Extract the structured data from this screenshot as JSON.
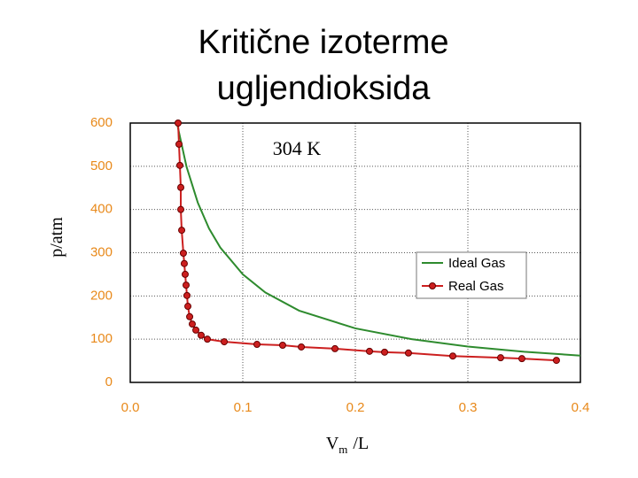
{
  "chart_data": {
    "type": "line",
    "title": [
      "Kritične izoterme",
      "ugljendioksida"
    ],
    "annotation": "304 K",
    "y_label": "p/atm",
    "x_label": {
      "main": "V",
      "sub": "m",
      "unit": "/L"
    },
    "xlim": [
      0,
      0.4
    ],
    "ylim": [
      0,
      600
    ],
    "xticks": [
      {
        "value": 0,
        "label": "0.0"
      },
      0.1,
      0.2,
      0.3,
      0.4
    ],
    "yticks": [
      0,
      100,
      200,
      300,
      400,
      500,
      600
    ],
    "grid": true,
    "legend": "right",
    "series": [
      {
        "name": "Ideal Gas",
        "color": "#2e8b2e",
        "markers": false,
        "x": [
          0.042,
          0.05,
          0.06,
          0.07,
          0.08,
          0.1,
          0.12,
          0.15,
          0.2,
          0.25,
          0.3,
          0.35,
          0.4
        ],
        "values": [
          594,
          499,
          416,
          356,
          312,
          250,
          208,
          166,
          125,
          100,
          83,
          71,
          62
        ]
      },
      {
        "name": "Real Gas",
        "color": "#cc1f1f",
        "markers": true,
        "x": [
          0.0425,
          0.0433,
          0.0441,
          0.0449,
          0.0449,
          0.0457,
          0.0472,
          0.048,
          0.0488,
          0.0496,
          0.0504,
          0.0512,
          0.0528,
          0.0551,
          0.0583,
          0.063,
          0.0685,
          0.0835,
          0.1126,
          0.1354,
          0.152,
          0.1819,
          0.2126,
          0.226,
          0.2472,
          0.2866,
          0.3291,
          0.348,
          0.3787
        ],
        "values": [
          600,
          551,
          502,
          451,
          400,
          352,
          299,
          275,
          250,
          225,
          201,
          176,
          152,
          135,
          121,
          109,
          100,
          94,
          88,
          86,
          82,
          78,
          72,
          70,
          68,
          61,
          57,
          55,
          51
        ]
      }
    ]
  }
}
